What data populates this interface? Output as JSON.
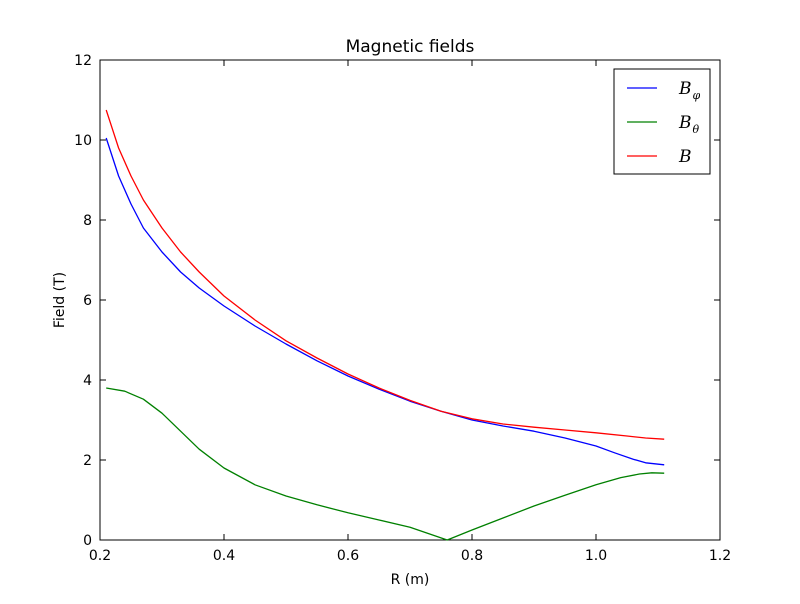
{
  "chart_data": {
    "type": "line",
    "title": "Magnetic fields",
    "xlabel": "R (m)",
    "ylabel": "Field (T)",
    "xlim": [
      0.2,
      1.2
    ],
    "ylim": [
      0,
      12
    ],
    "xticks": [
      "0.2",
      "0.4",
      "0.6",
      "0.8",
      "1.0",
      "1.2"
    ],
    "yticks": [
      "0",
      "2",
      "4",
      "6",
      "8",
      "10",
      "12"
    ],
    "grid": false,
    "legend_position": "top-right",
    "series": [
      {
        "name": "B_φ",
        "legend_main": "B",
        "legend_sub": "φ",
        "color": "#0000ff",
        "x": [
          0.21,
          0.23,
          0.25,
          0.27,
          0.3,
          0.33,
          0.36,
          0.4,
          0.45,
          0.5,
          0.55,
          0.6,
          0.65,
          0.7,
          0.75,
          0.8,
          0.85,
          0.9,
          0.95,
          1.0,
          1.03,
          1.06,
          1.08,
          1.11
        ],
        "y": [
          10.05,
          9.1,
          8.4,
          7.8,
          7.2,
          6.7,
          6.3,
          5.85,
          5.35,
          4.9,
          4.48,
          4.1,
          3.77,
          3.47,
          3.22,
          3.0,
          2.85,
          2.72,
          2.55,
          2.35,
          2.18,
          2.02,
          1.93,
          1.88
        ]
      },
      {
        "name": "B_θ",
        "legend_main": "B",
        "legend_sub": "θ",
        "color": "#008000",
        "x": [
          0.21,
          0.24,
          0.27,
          0.3,
          0.33,
          0.36,
          0.4,
          0.45,
          0.5,
          0.55,
          0.6,
          0.65,
          0.7,
          0.76,
          0.8,
          0.85,
          0.9,
          0.95,
          1.0,
          1.04,
          1.07,
          1.09,
          1.11
        ],
        "y": [
          3.8,
          3.72,
          3.52,
          3.17,
          2.72,
          2.27,
          1.8,
          1.38,
          1.1,
          0.88,
          0.68,
          0.5,
          0.32,
          0.0,
          0.25,
          0.55,
          0.85,
          1.12,
          1.38,
          1.56,
          1.65,
          1.68,
          1.67
        ]
      },
      {
        "name": "B",
        "legend_main": "B",
        "legend_sub": "",
        "color": "#ff0000",
        "x": [
          0.21,
          0.23,
          0.25,
          0.27,
          0.3,
          0.33,
          0.36,
          0.4,
          0.45,
          0.5,
          0.55,
          0.6,
          0.65,
          0.7,
          0.75,
          0.8,
          0.85,
          0.9,
          0.95,
          1.0,
          1.05,
          1.08,
          1.11
        ],
        "y": [
          10.75,
          9.8,
          9.1,
          8.5,
          7.8,
          7.2,
          6.7,
          6.1,
          5.5,
          4.98,
          4.55,
          4.15,
          3.8,
          3.49,
          3.22,
          3.03,
          2.9,
          2.82,
          2.75,
          2.68,
          2.6,
          2.55,
          2.52
        ]
      }
    ]
  }
}
